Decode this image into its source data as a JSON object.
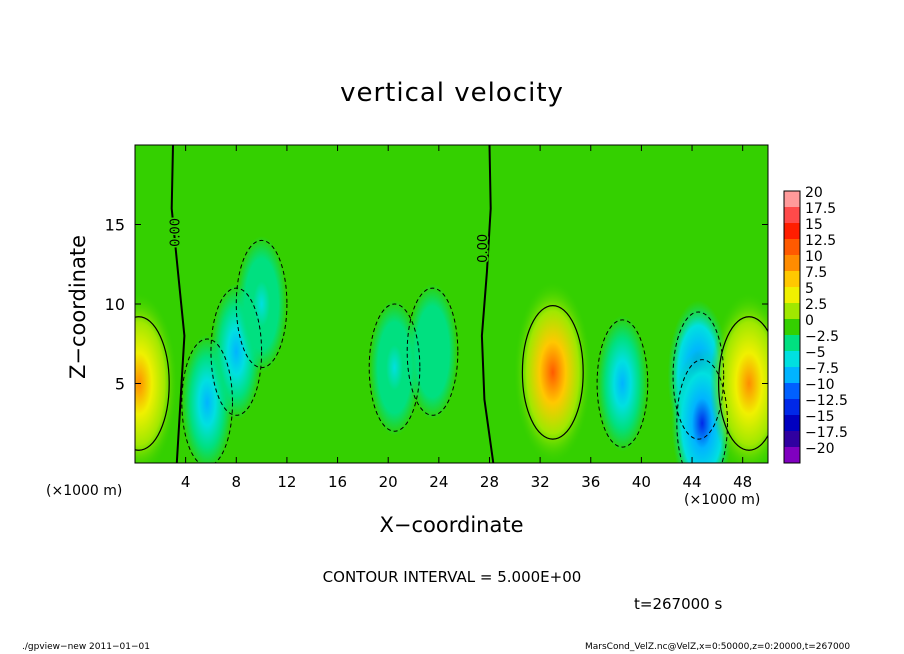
{
  "chart_data": {
    "type": "heatmap",
    "title": "vertical velocity",
    "xlabel": "X−coordinate",
    "ylabel": "Z−coordinate",
    "x_unit_note": "(×1000 m)",
    "xlim": [
      0,
      50
    ],
    "ylim": [
      0,
      20
    ],
    "x_ticks": [
      "4",
      "8",
      "12",
      "16",
      "20",
      "24",
      "28",
      "32",
      "36",
      "40",
      "44",
      "48"
    ],
    "x_tick_values": [
      4,
      8,
      12,
      16,
      20,
      24,
      28,
      32,
      36,
      40,
      44,
      48
    ],
    "y_ticks": [
      "5",
      "10",
      "15"
    ],
    "y_tick_values": [
      5,
      10,
      15
    ],
    "contour_interval_text": "CONTOUR INTERVAL = 5.000E+00",
    "contour_labels": [
      {
        "text": "0.00",
        "x": 3.5,
        "y": 14.5
      },
      {
        "text": "0.00",
        "x": 27.8,
        "y": 13.5
      }
    ],
    "colorbar": {
      "labels": [
        "20",
        "17.5",
        "15",
        "12.5",
        "10",
        "7.5",
        "5",
        "2.5",
        "0",
        "−2.5",
        "−5",
        "−7.5",
        "−10",
        "−12.5",
        "−15",
        "−17.5",
        "−20"
      ],
      "values": [
        20,
        17.5,
        15,
        12.5,
        10,
        7.5,
        5,
        2.5,
        0,
        -2.5,
        -5,
        -7.5,
        -10,
        -12.5,
        -15,
        -17.5,
        -20
      ],
      "colors": [
        "#ff9a9a",
        "#ff4a4a",
        "#ff1e00",
        "#ff5a00",
        "#ff8c00",
        "#ffc800",
        "#f0f000",
        "#a0e800",
        "#34d000",
        "#00e080",
        "#00e0e0",
        "#00b4ff",
        "#0060ff",
        "#0028e8",
        "#0000c0",
        "#3000a0",
        "#8000c0"
      ]
    },
    "features": [
      {
        "kind": "updraft",
        "x": 0.3,
        "z": 5,
        "peak": 10
      },
      {
        "kind": "downdraft",
        "x": 5.7,
        "z": 3.8,
        "peak": -7
      },
      {
        "kind": "downdraft",
        "x": 8,
        "z": 7,
        "peak": -6
      },
      {
        "kind": "downdraft",
        "x": 10,
        "z": 10,
        "peak": -3
      },
      {
        "kind": "downdraft",
        "x": 20.5,
        "z": 6,
        "peak": -3.5
      },
      {
        "kind": "downdraft",
        "x": 23.5,
        "z": 7,
        "peak": -2.5
      },
      {
        "kind": "updraft",
        "x": 33,
        "z": 5.7,
        "peak": 13
      },
      {
        "kind": "downdraft",
        "x": 38.5,
        "z": 5,
        "peak": -7
      },
      {
        "kind": "downdraft",
        "x": 44.5,
        "z": 5.5,
        "peak": -10
      },
      {
        "kind": "downdraft",
        "x": 44.8,
        "z": 2.5,
        "peak": -11
      },
      {
        "kind": "updraft",
        "x": 48.5,
        "z": 5,
        "peak": 11
      }
    ]
  },
  "labels": {
    "time": "t=267000 s",
    "footer_left": "./gpview−new   2011−01−01",
    "footer_right": "MarsCond_VelZ.nc@VelZ,x=0:50000,z=0:20000,t=267000"
  }
}
